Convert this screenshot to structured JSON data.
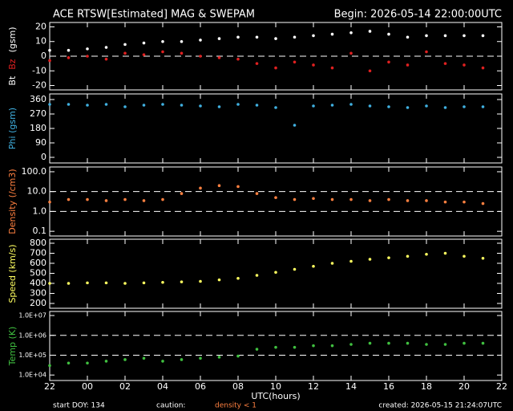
{
  "header": {
    "title": "ACE RTSW[Estimated] MAG & SWEPAM",
    "begin": "Begin: 2026-05-14 22:00:00UTC"
  },
  "footer": {
    "xlabel": "UTC(hours)",
    "start": "start DOY: 134",
    "caution": "caution:",
    "caution_note": "density < 1",
    "created": "created: 2026-05-15 21:24:07UTC"
  },
  "chart_data": [
    {
      "type": "scatter",
      "ylabel": "(gsm)",
      "x": [
        0,
        1,
        2,
        3,
        4,
        5,
        6,
        7,
        8,
        9,
        10,
        11,
        12,
        13,
        14,
        15,
        16,
        17,
        18,
        19,
        20,
        21,
        22,
        23
      ],
      "xlim": [
        0,
        24
      ],
      "xticks": [
        {
          "value": 0,
          "label": "22"
        },
        {
          "value": 2,
          "label": "00"
        },
        {
          "value": 4,
          "label": "02"
        },
        {
          "value": 6,
          "label": "04"
        },
        {
          "value": 8,
          "label": "06"
        },
        {
          "value": 10,
          "label": "08"
        },
        {
          "value": 12,
          "label": "10"
        },
        {
          "value": 14,
          "label": "12"
        },
        {
          "value": 16,
          "label": "14"
        },
        {
          "value": 18,
          "label": "16"
        },
        {
          "value": 20,
          "label": "18"
        },
        {
          "value": 22,
          "label": "20"
        },
        {
          "value": 24,
          "label": "22"
        }
      ],
      "ylim": [
        -23,
        23
      ],
      "yticks": [
        -20,
        -10,
        0,
        10,
        20
      ],
      "reference_lines": [
        0
      ],
      "log": false,
      "series": [
        {
          "name": "Bt",
          "color": "#ffffff",
          "values": [
            4,
            4,
            5,
            6,
            8,
            9,
            10,
            10,
            11,
            12,
            13,
            13,
            12,
            13,
            14,
            15,
            16,
            17,
            15,
            13,
            14,
            14,
            14,
            14
          ]
        },
        {
          "name": "Bz",
          "color": "#e02020",
          "values": [
            -3,
            -1,
            0,
            -2,
            2,
            1,
            3,
            2,
            0,
            -1,
            -2,
            -5,
            -8,
            -4,
            -6,
            -8,
            2,
            -10,
            -4,
            -6,
            3,
            -5,
            -6,
            -8
          ]
        }
      ]
    },
    {
      "type": "scatter",
      "ylabel": "Phi (gsm)",
      "color": "#40b0e0",
      "x": [
        0,
        1,
        2,
        3,
        4,
        5,
        6,
        7,
        8,
        9,
        10,
        11,
        12,
        13,
        14,
        15,
        16,
        17,
        18,
        19,
        20,
        21,
        22,
        23
      ],
      "xlim": [
        0,
        24
      ],
      "xticks": [
        0,
        2,
        4,
        6,
        8,
        10,
        12,
        14,
        16,
        18,
        20,
        22,
        24
      ],
      "ylim": [
        -35,
        395
      ],
      "yticks": [
        0,
        90,
        180,
        270,
        360
      ],
      "reference_lines": [],
      "log": false,
      "values": [
        330,
        330,
        325,
        330,
        315,
        325,
        330,
        325,
        320,
        315,
        330,
        325,
        310,
        200,
        320,
        325,
        330,
        320,
        315,
        310,
        320,
        310,
        315,
        315
      ]
    },
    {
      "type": "scatter",
      "ylabel": "Density (/cm3)",
      "color": "#ff8040",
      "x": [
        0,
        1,
        2,
        3,
        4,
        5,
        6,
        7,
        8,
        9,
        10,
        11,
        12,
        13,
        14,
        15,
        16,
        17,
        18,
        19,
        20,
        21,
        22,
        23
      ],
      "xlim": [
        0,
        24
      ],
      "xticks": [
        0,
        2,
        4,
        6,
        8,
        10,
        12,
        14,
        16,
        18,
        20,
        22,
        24
      ],
      "ylim": [
        0.058,
        174
      ],
      "yticks": [
        0.1,
        {
          "value": 1,
          "label": "1.0"
        },
        {
          "value": 10,
          "label": "10.0"
        },
        {
          "value": 100,
          "label": "100.0"
        }
      ],
      "reference_lines": [
        1,
        10
      ],
      "log": true,
      "values": [
        3,
        4,
        4,
        3.5,
        4,
        3.5,
        4,
        8,
        15,
        20,
        18,
        8,
        5,
        4,
        4.5,
        4,
        4,
        3.5,
        4,
        3.5,
        3.5,
        3,
        3,
        2.5
      ]
    },
    {
      "type": "scatter",
      "ylabel": "Speed (km/s)",
      "color": "#ffff60",
      "x": [
        0,
        1,
        2,
        3,
        4,
        5,
        6,
        7,
        8,
        9,
        10,
        11,
        12,
        13,
        14,
        15,
        16,
        17,
        18,
        19,
        20,
        21,
        22,
        23
      ],
      "xlim": [
        0,
        24
      ],
      "xticks": [
        0,
        2,
        4,
        6,
        8,
        10,
        12,
        14,
        16,
        18,
        20,
        22,
        24
      ],
      "ylim": [
        152,
        840
      ],
      "yticks": [
        200,
        300,
        400,
        500,
        600,
        700,
        800
      ],
      "reference_lines": [],
      "log": false,
      "values": [
        400,
        400,
        405,
        405,
        400,
        405,
        410,
        415,
        420,
        435,
        450,
        480,
        510,
        540,
        570,
        600,
        620,
        640,
        655,
        670,
        690,
        700,
        670,
        650
      ]
    },
    {
      "type": "scatter",
      "ylabel": "Temp (K)",
      "color": "#40c040",
      "x": [
        0,
        1,
        2,
        3,
        4,
        5,
        6,
        7,
        8,
        9,
        10,
        11,
        12,
        13,
        14,
        15,
        16,
        17,
        18,
        19,
        20,
        21,
        22,
        23
      ],
      "xlim": [
        0,
        24
      ],
      "xticks": [
        {
          "value": 0,
          "label": "22"
        },
        {
          "value": 2,
          "label": "00"
        },
        {
          "value": 4,
          "label": "02"
        },
        {
          "value": 6,
          "label": "04"
        },
        {
          "value": 8,
          "label": "06"
        },
        {
          "value": 10,
          "label": "08"
        },
        {
          "value": 12,
          "label": "10"
        },
        {
          "value": 14,
          "label": "12"
        },
        {
          "value": 16,
          "label": "14"
        },
        {
          "value": 18,
          "label": "16"
        },
        {
          "value": 20,
          "label": "18"
        },
        {
          "value": 22,
          "label": "20"
        },
        {
          "value": 24,
          "label": "22"
        }
      ],
      "ylim": [
        5300,
        16000000
      ],
      "yticks": [
        {
          "value": 10000,
          "label": "1.0E+04"
        },
        {
          "value": 100000,
          "label": "1.0E+05"
        },
        {
          "value": 1000000,
          "label": "1.0E+06"
        },
        {
          "value": 10000000,
          "label": "1.0E+07"
        }
      ],
      "reference_lines": [
        100000,
        1000000
      ],
      "log": true,
      "values": [
        30000,
        40000,
        40000,
        50000,
        60000,
        70000,
        50000,
        60000,
        70000,
        80000,
        90000,
        200000,
        250000,
        250000,
        300000,
        300000,
        350000,
        400000,
        400000,
        400000,
        350000,
        350000,
        400000,
        400000
      ]
    }
  ]
}
